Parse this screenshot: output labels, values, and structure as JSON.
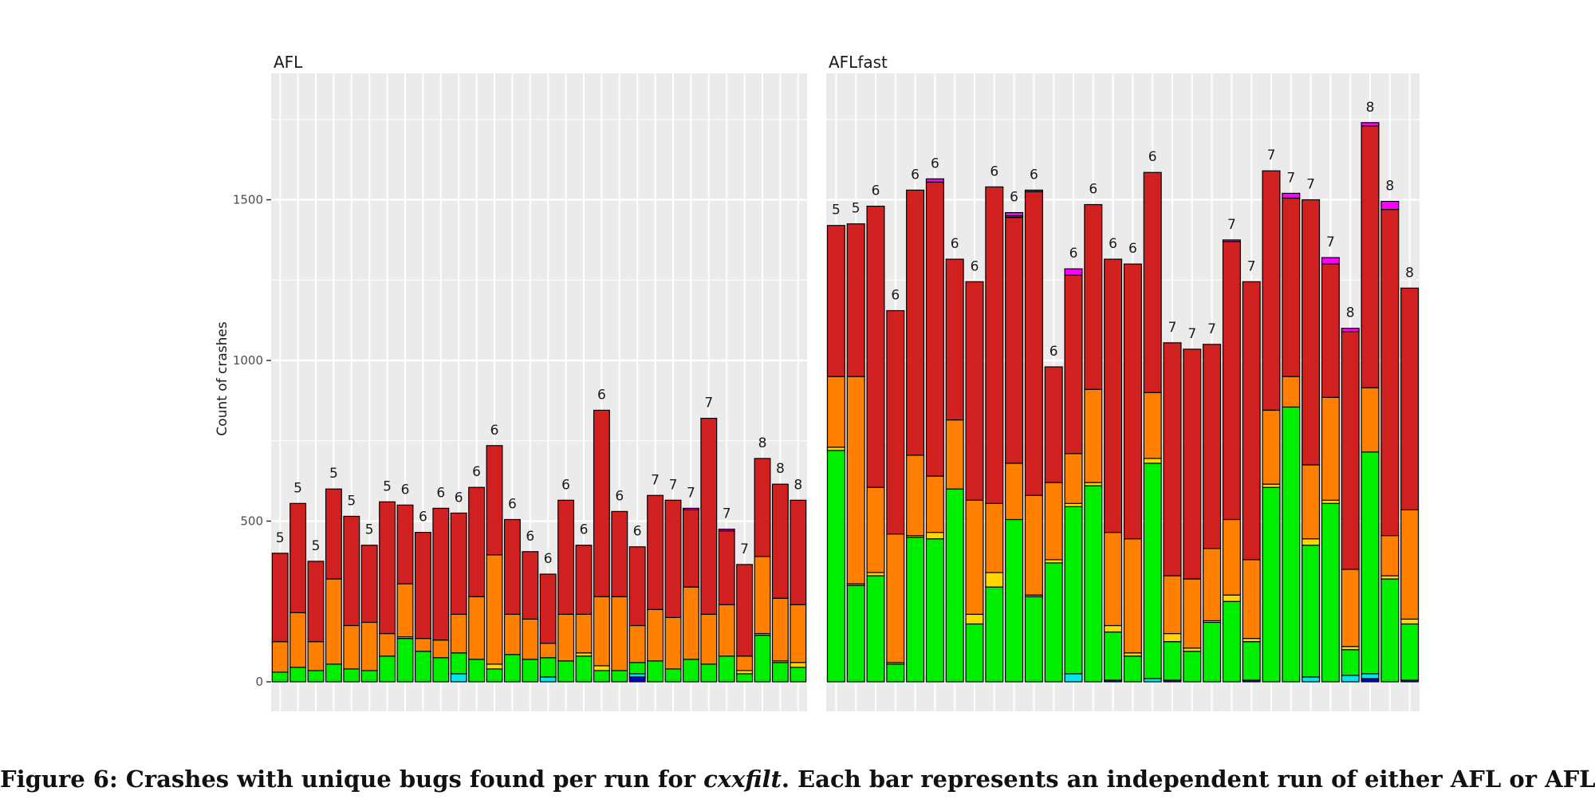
{
  "figure_caption": {
    "prefix": "Figure 6: Crashes with unique bugs found per run for ",
    "program": "cxxfilt",
    "suffix": ". Each bar represents an independent run of either AFL or AFLfast."
  },
  "colors": {
    "panel_background": "#ebebeb",
    "gridline": "#ffffff",
    "bug_stack_bottom_to_top": [
      "#0000cc",
      "#00e5ee",
      "#00ee00",
      "#ffd700",
      "#ff8000",
      "#d02020",
      "#cc00cc",
      "#ff00ff"
    ]
  },
  "chart_data": [
    {
      "type": "bar",
      "stacked": true,
      "title": "AFL",
      "ylabel": "Count of crashes",
      "xlabel": "",
      "ylim": [
        0,
        1800
      ],
      "yticks": [
        0,
        500,
        1000,
        1500
      ],
      "grid": true,
      "legend": "none",
      "bar_labels": [
        5,
        5,
        5,
        5,
        5,
        5,
        5,
        6,
        6,
        6,
        6,
        6,
        6,
        6,
        6,
        6,
        6,
        6,
        6,
        6,
        6,
        7,
        7,
        7,
        7,
        7,
        7,
        8,
        8,
        8
      ],
      "bars": [
        [
          0,
          0,
          30,
          0,
          95,
          275,
          0,
          0
        ],
        [
          0,
          0,
          45,
          0,
          170,
          340,
          0,
          0
        ],
        [
          0,
          0,
          35,
          0,
          90,
          250,
          0,
          0
        ],
        [
          0,
          0,
          55,
          0,
          265,
          280,
          0,
          0
        ],
        [
          0,
          0,
          40,
          0,
          135,
          340,
          0,
          0
        ],
        [
          0,
          0,
          35,
          0,
          150,
          240,
          0,
          0
        ],
        [
          0,
          0,
          80,
          0,
          70,
          410,
          0,
          0
        ],
        [
          0,
          0,
          135,
          5,
          165,
          245,
          0,
          0
        ],
        [
          0,
          0,
          95,
          0,
          40,
          330,
          0,
          0
        ],
        [
          0,
          0,
          75,
          0,
          55,
          410,
          0,
          0
        ],
        [
          0,
          25,
          65,
          0,
          120,
          315,
          0,
          0
        ],
        [
          0,
          0,
          70,
          0,
          195,
          340,
          0,
          0
        ],
        [
          0,
          0,
          40,
          15,
          340,
          340,
          0,
          0
        ],
        [
          0,
          0,
          85,
          0,
          125,
          295,
          0,
          0
        ],
        [
          0,
          0,
          70,
          0,
          125,
          210,
          0,
          0
        ],
        [
          0,
          15,
          60,
          0,
          45,
          215,
          0,
          0
        ],
        [
          0,
          0,
          65,
          0,
          145,
          355,
          0,
          0
        ],
        [
          0,
          0,
          80,
          10,
          120,
          215,
          0,
          0
        ],
        [
          0,
          0,
          35,
          15,
          215,
          580,
          0,
          0
        ],
        [
          0,
          0,
          35,
          0,
          230,
          265,
          0,
          0
        ],
        [
          15,
          10,
          35,
          0,
          115,
          245,
          0,
          0
        ],
        [
          0,
          0,
          65,
          0,
          160,
          355,
          0,
          0
        ],
        [
          0,
          0,
          40,
          0,
          160,
          365,
          0,
          0
        ],
        [
          0,
          0,
          70,
          0,
          225,
          240,
          5,
          0
        ],
        [
          0,
          0,
          55,
          0,
          155,
          610,
          0,
          0
        ],
        [
          0,
          0,
          80,
          0,
          160,
          230,
          5,
          0
        ],
        [
          0,
          0,
          25,
          10,
          45,
          285,
          0,
          0
        ],
        [
          0,
          0,
          145,
          5,
          240,
          305,
          0,
          0
        ],
        [
          0,
          0,
          60,
          5,
          195,
          355,
          0,
          0
        ],
        [
          0,
          0,
          45,
          15,
          180,
          325,
          0,
          0
        ]
      ]
    },
    {
      "type": "bar",
      "stacked": true,
      "title": "AFLfast",
      "ylabel": "",
      "xlabel": "",
      "ylim": [
        0,
        1800
      ],
      "yticks": [
        0,
        500,
        1000,
        1500
      ],
      "grid": true,
      "legend": "none",
      "bar_labels": [
        5,
        5,
        6,
        6,
        6,
        6,
        6,
        6,
        6,
        6,
        6,
        6,
        6,
        6,
        6,
        6,
        6,
        7,
        7,
        7,
        7,
        7,
        7,
        7,
        7,
        7,
        8,
        8,
        8,
        8
      ],
      "bars": [
        [
          0,
          0,
          720,
          10,
          220,
          470,
          0,
          0
        ],
        [
          0,
          0,
          300,
          5,
          645,
          475,
          0,
          0
        ],
        [
          0,
          0,
          330,
          10,
          265,
          875,
          0,
          0
        ],
        [
          0,
          0,
          55,
          5,
          400,
          695,
          0,
          0
        ],
        [
          0,
          0,
          450,
          5,
          250,
          825,
          0,
          0
        ],
        [
          0,
          0,
          445,
          20,
          175,
          915,
          0,
          10
        ],
        [
          0,
          0,
          600,
          0,
          215,
          500,
          0,
          0
        ],
        [
          0,
          0,
          180,
          30,
          355,
          680,
          0,
          0
        ],
        [
          0,
          0,
          295,
          45,
          215,
          985,
          0,
          0
        ],
        [
          0,
          0,
          505,
          0,
          175,
          765,
          5,
          10
        ],
        [
          0,
          0,
          265,
          5,
          310,
          945,
          5,
          0
        ],
        [
          0,
          0,
          370,
          10,
          240,
          360,
          0,
          0
        ],
        [
          0,
          25,
          520,
          10,
          155,
          555,
          0,
          20
        ],
        [
          0,
          0,
          610,
          10,
          290,
          575,
          0,
          0
        ],
        [
          5,
          0,
          150,
          20,
          290,
          850,
          0,
          0
        ],
        [
          0,
          0,
          80,
          10,
          355,
          855,
          0,
          0
        ],
        [
          0,
          10,
          670,
          15,
          205,
          685,
          0,
          0
        ],
        [
          5,
          0,
          120,
          25,
          180,
          725,
          0,
          0
        ],
        [
          0,
          0,
          95,
          10,
          215,
          715,
          0,
          0
        ],
        [
          0,
          0,
          185,
          5,
          225,
          635,
          0,
          0
        ],
        [
          0,
          0,
          250,
          20,
          235,
          865,
          0,
          5
        ],
        [
          5,
          0,
          120,
          10,
          245,
          865,
          0,
          0
        ],
        [
          0,
          0,
          605,
          10,
          230,
          745,
          0,
          0
        ],
        [
          0,
          0,
          855,
          0,
          95,
          555,
          0,
          15
        ],
        [
          0,
          15,
          410,
          20,
          230,
          825,
          0,
          0
        ],
        [
          0,
          0,
          555,
          10,
          320,
          415,
          0,
          20
        ],
        [
          0,
          20,
          80,
          10,
          240,
          740,
          0,
          10
        ],
        [
          10,
          15,
          690,
          0,
          200,
          815,
          0,
          10
        ],
        [
          0,
          0,
          320,
          10,
          125,
          1015,
          0,
          25
        ],
        [
          5,
          0,
          175,
          15,
          340,
          690,
          0,
          0
        ]
      ]
    }
  ]
}
